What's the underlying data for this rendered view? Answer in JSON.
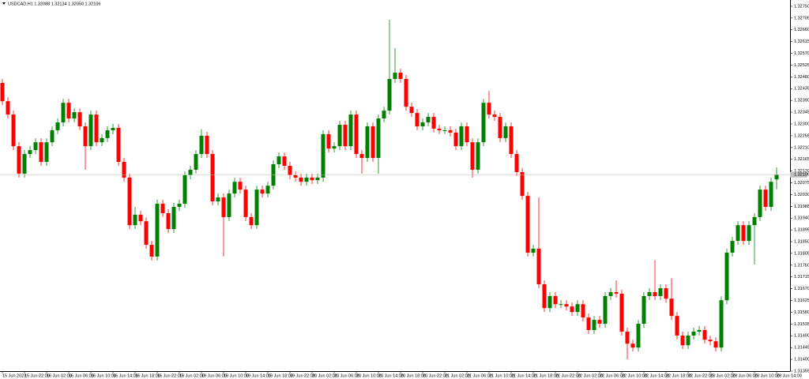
{
  "chart_data": {
    "type": "candlestick",
    "title": "USDCAD,H1 1.32088 1.32134 1.32050 1.32106",
    "up_color": "#008000",
    "down_color": "#ff0000",
    "price_line": 1.32106,
    "ylim": [
      1.31355,
      1.32774
    ],
    "yticks": [
      {
        "value": 1.3275,
        "label": "1.32750"
      },
      1.32705,
      {
        "value": 1.3266,
        "label": "1.32660"
      },
      1.32615,
      {
        "value": 1.3257,
        "label": "1.32570"
      },
      1.32525,
      {
        "value": 1.3248,
        "label": "1.32480"
      },
      1.32435,
      {
        "value": 1.3239,
        "label": "1.32390"
      },
      1.32345,
      {
        "value": 1.323,
        "label": "1.32300"
      },
      1.32255,
      {
        "value": 1.3221,
        "label": "1.32210"
      },
      1.32165,
      {
        "value": 1.3212,
        "label": "1.32120"
      },
      1.32075,
      {
        "value": 1.3203,
        "label": "1.32030"
      },
      1.31985,
      {
        "value": 1.3194,
        "label": "1.31940"
      },
      1.31895,
      {
        "value": 1.3185,
        "label": "1.31850"
      },
      1.31805,
      {
        "value": 1.3176,
        "label": "1.31760"
      },
      1.31715,
      {
        "value": 1.3167,
        "label": "1.31670"
      },
      1.31625,
      {
        "value": 1.3158,
        "label": "1.31580"
      },
      1.31535,
      {
        "value": 1.3149,
        "label": "1.31490"
      },
      1.31445,
      {
        "value": 1.314,
        "label": "1.31400"
      },
      1.31355
    ],
    "categories": [
      "15 Jun 2023",
      null,
      null,
      null,
      "15 Jun 22:00",
      null,
      null,
      null,
      "16 Jun 02:00",
      null,
      null,
      null,
      "16 Jun 06:00",
      null,
      null,
      null,
      "16 Jun 10:00",
      null,
      null,
      null,
      "16 Jun 14:00",
      null,
      null,
      null,
      "16 Jun 18:00",
      null,
      null,
      null,
      "16 Jun 22:00",
      null,
      null,
      null,
      "19 Jun 02:00",
      null,
      null,
      null,
      "19 Jun 06:00",
      null,
      null,
      null,
      "19 Jun 10:00",
      null,
      null,
      null,
      "19 Jun 14:00",
      null,
      null,
      null,
      "19 Jun 18:00",
      null,
      null,
      null,
      "19 Jun 22:00",
      null,
      null,
      null,
      "20 Jun 02:00",
      null,
      null,
      null,
      "20 Jun 06:00",
      null,
      null,
      null,
      "20 Jun 10:00",
      null,
      null,
      null,
      "20 Jun 14:00",
      null,
      null,
      null,
      "20 Jun 18:00",
      null,
      null,
      null,
      "20 Jun 22:00",
      null,
      null,
      null,
      "21 Jun 02:00",
      null,
      null,
      null,
      "21 Jun 06:00",
      null,
      null,
      null,
      "21 Jun 10:00",
      null,
      null,
      null,
      "21 Jun 14:00",
      null,
      null,
      null,
      "21 Jun 18:00",
      null,
      null,
      null,
      "21 Jun 22:00",
      null,
      null,
      null,
      "22 Jun 02:00",
      null,
      null,
      null,
      "22 Jun 06:00",
      null,
      null,
      null,
      "22 Jun 10:00",
      null,
      null,
      null,
      "22 Jun 14:00",
      null,
      null,
      null,
      "22 Jun 18:00",
      null,
      null,
      null,
      "22 Jun 22:00",
      null,
      null,
      null,
      "23 Jun 02:00",
      null,
      null,
      null,
      "23 Jun 06:00",
      null,
      null,
      null,
      "23 Jun 10:00",
      null,
      null,
      null,
      "23 Jun 14:00"
    ],
    "ohlc": [
      [
        1.32457,
        1.32472,
        1.32372,
        1.32387
      ],
      [
        1.32387,
        1.32402,
        1.32321,
        1.32336
      ],
      [
        1.32336,
        1.32351,
        1.322,
        1.32215
      ],
      [
        1.32215,
        1.3223,
        1.32095,
        1.3211
      ],
      [
        1.3211,
        1.322,
        1.32095,
        1.32185
      ],
      [
        1.32185,
        1.32215,
        1.3217,
        1.322
      ],
      [
        1.322,
        1.32245,
        1.32185,
        1.3223
      ],
      [
        1.3223,
        1.32245,
        1.3214,
        1.32155
      ],
      [
        1.32155,
        1.32245,
        1.3214,
        1.3223
      ],
      [
        1.3223,
        1.32291,
        1.32215,
        1.32276
      ],
      [
        1.32276,
        1.32321,
        1.32261,
        1.32306
      ],
      [
        1.32306,
        1.32396,
        1.32291,
        1.32381
      ],
      [
        1.32381,
        1.32396,
        1.32306,
        1.32321
      ],
      [
        1.32321,
        1.3236,
        1.32306,
        1.32345
      ],
      [
        1.32345,
        1.3236,
        1.32276,
        1.32291
      ],
      [
        1.32291,
        1.32306,
        1.32125,
        1.32215
      ],
      [
        1.32215,
        1.32351,
        1.322,
        1.32336
      ],
      [
        1.32336,
        1.32351,
        1.32215,
        1.3223
      ],
      [
        1.3223,
        1.32261,
        1.32215,
        1.32246
      ],
      [
        1.32246,
        1.32291,
        1.32231,
        1.32276
      ],
      [
        1.32276,
        1.323,
        1.32261,
        1.32285
      ],
      [
        1.32285,
        1.323,
        1.3214,
        1.32155
      ],
      [
        1.32155,
        1.3217,
        1.3208,
        1.32095
      ],
      [
        1.32095,
        1.3211,
        1.31898,
        1.31913
      ],
      [
        1.31913,
        1.31983,
        1.31898,
        1.31953
      ],
      [
        1.31953,
        1.31968,
        1.31913,
        1.31928
      ],
      [
        1.31928,
        1.31943,
        1.31823,
        1.31838
      ],
      [
        1.31838,
        1.31853,
        1.31778,
        1.31793
      ],
      [
        1.31793,
        1.3201,
        1.31778,
        1.31995
      ],
      [
        1.31995,
        1.3201,
        1.31944,
        1.31959
      ],
      [
        1.31959,
        1.31974,
        1.31883,
        1.31898
      ],
      [
        1.31898,
        1.31998,
        1.31883,
        1.31983
      ],
      [
        1.31983,
        1.3201,
        1.31968,
        1.31995
      ],
      [
        1.31995,
        1.32119,
        1.3198,
        1.32104
      ],
      [
        1.32104,
        1.3214,
        1.32089,
        1.32125
      ],
      [
        1.32125,
        1.322,
        1.3211,
        1.32185
      ],
      [
        1.32185,
        1.3228,
        1.3217,
        1.32255
      ],
      [
        1.32255,
        1.3227,
        1.3217,
        1.32185
      ],
      [
        1.32185,
        1.322,
        1.31989,
        1.32004
      ],
      [
        1.32004,
        1.32034,
        1.31989,
        1.32019
      ],
      [
        1.32019,
        1.32034,
        1.31793,
        1.31944
      ],
      [
        1.31944,
        1.32049,
        1.31929,
        1.32034
      ],
      [
        1.32034,
        1.32094,
        1.32019,
        1.32079
      ],
      [
        1.32079,
        1.32094,
        1.32034,
        1.32049
      ],
      [
        1.32049,
        1.32064,
        1.31929,
        1.31944
      ],
      [
        1.31944,
        1.31959,
        1.31898,
        1.31913
      ],
      [
        1.31913,
        1.32064,
        1.31898,
        1.32049
      ],
      [
        1.32049,
        1.32064,
        1.32019,
        1.32034
      ],
      [
        1.32034,
        1.32079,
        1.32019,
        1.32064
      ],
      [
        1.32064,
        1.32161,
        1.32049,
        1.32146
      ],
      [
        1.32146,
        1.32191,
        1.32131,
        1.32176
      ],
      [
        1.32176,
        1.32191,
        1.32125,
        1.3214
      ],
      [
        1.3214,
        1.32155,
        1.32089,
        1.32104
      ],
      [
        1.32104,
        1.32119,
        1.3208,
        1.32095
      ],
      [
        1.32095,
        1.3211,
        1.32064,
        1.32079
      ],
      [
        1.32079,
        1.3211,
        1.32064,
        1.32095
      ],
      [
        1.32095,
        1.3211,
        1.3207,
        1.32085
      ],
      [
        1.32085,
        1.3211,
        1.3207,
        1.32095
      ],
      [
        1.32095,
        1.32276,
        1.3208,
        1.32261
      ],
      [
        1.32261,
        1.32276,
        1.32191,
        1.32206
      ],
      [
        1.32206,
        1.3223,
        1.32191,
        1.32215
      ],
      [
        1.32215,
        1.32312,
        1.322,
        1.32297
      ],
      [
        1.32297,
        1.32312,
        1.322,
        1.32215
      ],
      [
        1.32215,
        1.32351,
        1.322,
        1.32336
      ],
      [
        1.32336,
        1.32351,
        1.3217,
        1.32185
      ],
      [
        1.32185,
        1.322,
        1.3211,
        1.3217
      ],
      [
        1.3217,
        1.32306,
        1.32155,
        1.32291
      ],
      [
        1.32291,
        1.32306,
        1.32155,
        1.3217
      ],
      [
        1.3217,
        1.32336,
        1.3211,
        1.32321
      ],
      [
        1.32321,
        1.32366,
        1.32306,
        1.32351
      ],
      [
        1.32351,
        1.32698,
        1.32336,
        1.32472
      ],
      [
        1.32472,
        1.3259,
        1.32457,
        1.32496
      ],
      [
        1.32496,
        1.32511,
        1.32457,
        1.32472
      ],
      [
        1.32472,
        1.32487,
        1.32351,
        1.32366
      ],
      [
        1.32366,
        1.32381,
        1.32327,
        1.32342
      ],
      [
        1.32342,
        1.32357,
        1.32276,
        1.32291
      ],
      [
        1.32291,
        1.32321,
        1.32276,
        1.32306
      ],
      [
        1.32306,
        1.32342,
        1.32291,
        1.32327
      ],
      [
        1.32327,
        1.32342,
        1.32267,
        1.32282
      ],
      [
        1.32282,
        1.32297,
        1.32261,
        1.32276
      ],
      [
        1.32276,
        1.32291,
        1.32261,
        1.32276
      ],
      [
        1.32276,
        1.32291,
        1.32252,
        1.32267
      ],
      [
        1.32267,
        1.32282,
        1.322,
        1.32215
      ],
      [
        1.32215,
        1.32306,
        1.322,
        1.32291
      ],
      [
        1.32291,
        1.32306,
        1.32215,
        1.3223
      ],
      [
        1.3223,
        1.32245,
        1.32095,
        1.32125
      ],
      [
        1.32125,
        1.32245,
        1.3211,
        1.3223
      ],
      [
        1.3223,
        1.32396,
        1.32215,
        1.32381
      ],
      [
        1.32381,
        1.32427,
        1.32321,
        1.32336
      ],
      [
        1.32336,
        1.32351,
        1.32312,
        1.32327
      ],
      [
        1.32327,
        1.32342,
        1.32231,
        1.32246
      ],
      [
        1.32246,
        1.32306,
        1.32231,
        1.32291
      ],
      [
        1.32291,
        1.32306,
        1.3217,
        1.32185
      ],
      [
        1.32185,
        1.322,
        1.32101,
        1.32116
      ],
      [
        1.32116,
        1.32131,
        1.3201,
        1.32025
      ],
      [
        1.32025,
        1.3204,
        1.31793,
        1.31808
      ],
      [
        1.31808,
        1.31838,
        1.31793,
        1.31823
      ],
      [
        1.31823,
        1.32019,
        1.31672,
        1.31687
      ],
      [
        1.31687,
        1.31702,
        1.31581,
        1.31596
      ],
      [
        1.31596,
        1.31657,
        1.31581,
        1.31642
      ],
      [
        1.31642,
        1.31657,
        1.31596,
        1.31611
      ],
      [
        1.31611,
        1.31626,
        1.31596,
        1.31611
      ],
      [
        1.31611,
        1.31626,
        1.31587,
        1.31602
      ],
      [
        1.31602,
        1.31617,
        1.31566,
        1.31581
      ],
      [
        1.31581,
        1.31626,
        1.31566,
        1.31611
      ],
      [
        1.31611,
        1.31626,
        1.31545,
        1.3156
      ],
      [
        1.3156,
        1.31575,
        1.31497,
        1.31512
      ],
      [
        1.31512,
        1.31566,
        1.31497,
        1.31551
      ],
      [
        1.31551,
        1.31566,
        1.31521,
        1.31536
      ],
      [
        1.31536,
        1.31657,
        1.31521,
        1.31642
      ],
      [
        1.31642,
        1.31672,
        1.31627,
        1.31657
      ],
      [
        1.31657,
        1.31702,
        1.31636,
        1.31651
      ],
      [
        1.31651,
        1.31666,
        1.31491,
        1.31506
      ],
      [
        1.31506,
        1.31521,
        1.314,
        1.3146
      ],
      [
        1.3146,
        1.31475,
        1.3143,
        1.31445
      ],
      [
        1.31445,
        1.31551,
        1.3143,
        1.31536
      ],
      [
        1.31536,
        1.31657,
        1.31521,
        1.31642
      ],
      [
        1.31642,
        1.31672,
        1.31627,
        1.31657
      ],
      [
        1.31657,
        1.3178,
        1.31627,
        1.31642
      ],
      [
        1.31642,
        1.31687,
        1.31627,
        1.31672
      ],
      [
        1.31672,
        1.31687,
        1.31617,
        1.31632
      ],
      [
        1.31632,
        1.3171,
        1.31551,
        1.31566
      ],
      [
        1.31566,
        1.31581,
        1.31476,
        1.31491
      ],
      [
        1.31491,
        1.31506,
        1.31439,
        1.31454
      ],
      [
        1.31454,
        1.31506,
        1.31439,
        1.31491
      ],
      [
        1.31491,
        1.31521,
        1.31476,
        1.31506
      ],
      [
        1.31506,
        1.31527,
        1.31491,
        1.31512
      ],
      [
        1.31512,
        1.31527,
        1.3146,
        1.31475
      ],
      [
        1.31475,
        1.3149,
        1.31454,
        1.31469
      ],
      [
        1.31469,
        1.31484,
        1.3143,
        1.31445
      ],
      [
        1.31445,
        1.31641,
        1.3143,
        1.31626
      ],
      [
        1.31626,
        1.31823,
        1.31611,
        1.31808
      ],
      [
        1.31808,
        1.31868,
        1.31793,
        1.31853
      ],
      [
        1.31853,
        1.31928,
        1.31838,
        1.31913
      ],
      [
        1.31913,
        1.31928,
        1.31838,
        1.31853
      ],
      [
        1.31853,
        1.31928,
        1.31838,
        1.31913
      ],
      [
        1.31913,
        1.31959,
        1.31763,
        1.31944
      ],
      [
        1.31944,
        1.32064,
        1.31929,
        1.32049
      ],
      [
        1.32049,
        1.32064,
        1.31968,
        1.31983
      ],
      [
        1.31983,
        1.32094,
        1.31968,
        1.32079
      ],
      [
        1.32088,
        1.32134,
        1.3205,
        1.32106
      ]
    ]
  }
}
